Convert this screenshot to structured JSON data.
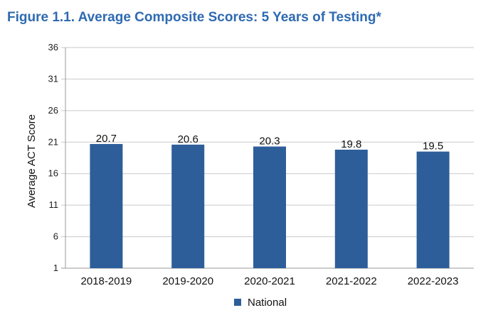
{
  "title": "Figure 1.1.  Average Composite Scores: 5 Years of Testing*",
  "chart_data": {
    "type": "bar",
    "categories": [
      "2018-2019",
      "2019-2020",
      "2020-2021",
      "2021-2022",
      "2022-2023"
    ],
    "series": [
      {
        "name": "National",
        "values": [
          20.7,
          20.6,
          20.3,
          19.8,
          19.5
        ],
        "color": "#2d5e9a"
      }
    ],
    "data_labels": [
      "20.7",
      "20.6",
      "20.3",
      "19.8",
      "19.5"
    ],
    "ylabel": "Average ACT Score",
    "xlabel": "",
    "ylim": [
      1,
      36
    ],
    "yticks": [
      1,
      6,
      11,
      16,
      21,
      26,
      31,
      36
    ],
    "grid": true,
    "legend_position": "bottom-center"
  }
}
